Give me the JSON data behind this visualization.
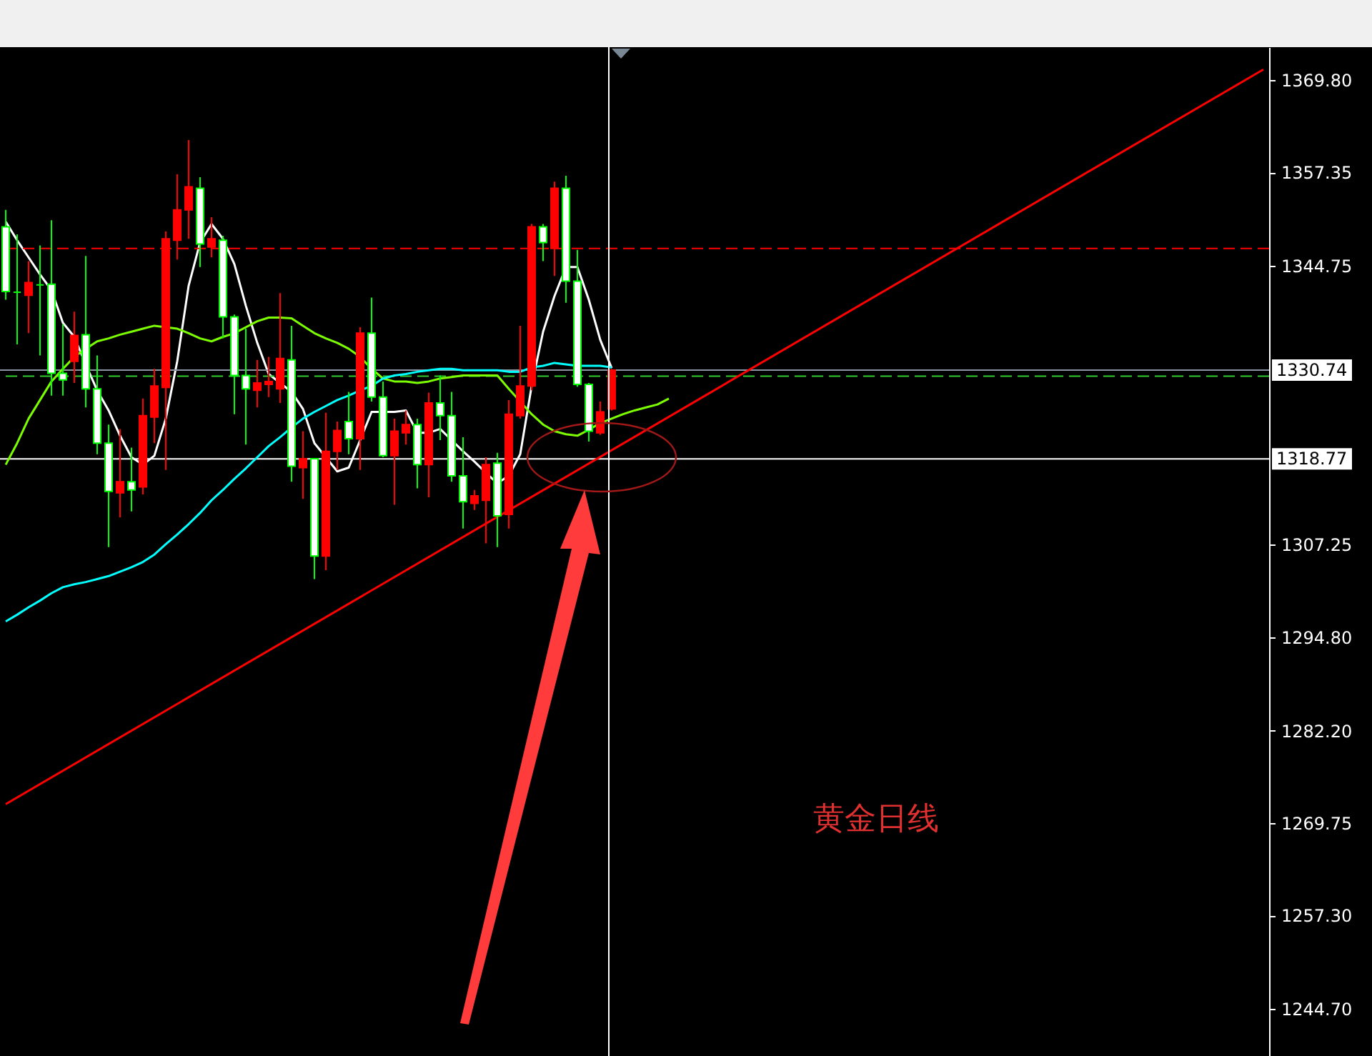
{
  "chart_data": {
    "type": "candlestick",
    "categories": [
      null,
      null,
      null,
      null,
      null,
      null,
      null,
      null,
      null,
      null,
      null,
      null,
      null,
      null,
      null,
      null,
      null,
      null,
      null,
      null,
      null,
      null,
      null,
      null,
      null,
      null,
      null,
      null,
      null,
      null,
      null,
      null,
      null,
      null,
      null,
      null,
      null,
      null,
      null,
      null,
      null,
      null,
      null,
      null,
      null,
      null,
      null,
      null,
      null,
      null,
      null,
      null,
      null,
      null,
      null,
      null,
      null,
      null,
      null,
      null,
      null,
      null,
      null,
      null,
      null,
      null,
      null,
      null,
      null,
      null,
      null,
      null,
      null,
      null,
      null,
      null,
      null,
      null,
      null,
      null,
      null,
      null,
      null,
      null,
      null,
      null,
      null,
      null,
      null,
      null,
      null,
      null,
      null,
      null,
      null,
      null,
      null,
      null,
      null,
      null,
      null,
      null,
      null,
      null,
      null,
      null,
      null,
      null,
      null,
      null,
      null
    ],
    "ylim": [
      1238.4,
      1374.2
    ],
    "yticks": [
      {
        "value": 1244.7,
        "label": "1244.70"
      },
      {
        "value": 1257.3,
        "label": "1257.30"
      },
      1269.75,
      {
        "value": 1282.2,
        "label": "1282.20"
      },
      {
        "value": 1294.8,
        "label": "1294.80"
      },
      1307.25,
      1344.75,
      1357.35,
      {
        "value": 1369.8,
        "label": "1369.80"
      }
    ],
    "tick_labels": "y",
    "series": [
      {
        "color": "#00ff00",
        "colors": [
          "#ffffff",
          "#00ff00",
          "#ff0000",
          "#00ff00",
          "#ffffff",
          "#ffffff",
          "#ff0000",
          "#ffffff",
          "#ffffff",
          "#ffffff",
          "#ff0000",
          "#ffffff",
          "#ff0000",
          "#ff0000",
          "#ff0000",
          "#ff0000",
          "#ff0000",
          "#ffffff",
          "#ff0000",
          "#ffffff",
          "#ffffff",
          "#ffffff",
          "#ff0000",
          "#ff0000",
          "#ff0000",
          "#ffffff",
          "#ff0000",
          "#ffffff",
          "#ff0000",
          "#ff0000",
          "#ffffff",
          "#ff0000",
          "#ffffff",
          "#ffffff",
          "#ff0000",
          "#ff0000",
          "#ffffff",
          "#ff0000",
          "#ffffff",
          "#ffffff",
          "#ffffff",
          "#ff0000",
          "#ff0000",
          "#ffffff",
          "#ff0000",
          "#ff0000",
          "#ff0000",
          "#ffffff",
          "#ff0000",
          "#ffffff",
          "#ffffff",
          "#ffffff",
          "#ff0000",
          "#ff0000",
          null,
          null,
          null,
          null,
          null,
          null,
          null,
          null,
          null,
          null,
          null,
          null,
          null,
          null,
          null,
          null,
          null,
          null,
          null,
          null,
          null,
          null,
          null,
          null,
          null,
          null,
          null,
          null,
          null,
          null,
          null,
          null,
          null,
          null,
          null,
          null,
          null,
          null,
          null,
          null,
          null,
          null,
          null,
          null,
          null,
          null,
          null,
          null,
          null,
          null,
          null,
          null,
          null,
          null,
          null,
          null,
          null
        ],
        "ohlc": [
          [
            1350.0,
            1352.3,
            1340.2,
            1341.3
          ],
          [
            1341.2,
            1349.0,
            1334.2,
            1341.2
          ],
          [
            1340.8,
            1345.4,
            1335.7,
            1342.5
          ],
          [
            1342.2,
            1347.5,
            1332.7,
            1342.2
          ],
          [
            1342.3,
            1350.9,
            1327.3,
            1330.3
          ],
          [
            1330.3,
            1336.9,
            1327.3,
            1329.4
          ],
          [
            1331.9,
            1338.6,
            1329.0,
            1335.4
          ],
          [
            1335.5,
            1346.1,
            1325.7,
            1328.2
          ],
          [
            1328.2,
            1332.7,
            1319.4,
            1320.9
          ],
          [
            1320.9,
            1323.4,
            1306.9,
            1314.4
          ],
          [
            1314.2,
            1322.8,
            1310.9,
            1315.7
          ],
          [
            1315.7,
            1320.3,
            1311.7,
            1314.6
          ],
          [
            1315.0,
            1326.9,
            1314.0,
            1324.6
          ],
          [
            1324.4,
            1330.9,
            1320.9,
            1328.6
          ],
          [
            1328.4,
            1349.4,
            1317.3,
            1348.4
          ],
          [
            1348.2,
            1357.1,
            1345.6,
            1352.3
          ],
          [
            1352.3,
            1361.7,
            1348.4,
            1355.4
          ],
          [
            1355.2,
            1356.7,
            1344.6,
            1347.7
          ],
          [
            1347.3,
            1351.3,
            1345.9,
            1348.4
          ],
          [
            1348.2,
            1348.8,
            1335.0,
            1337.9
          ],
          [
            1337.9,
            1338.2,
            1324.8,
            1330.0
          ],
          [
            1330.0,
            1336.3,
            1320.7,
            1328.2
          ],
          [
            1328.0,
            1332.1,
            1325.7,
            1329.0
          ],
          [
            1328.8,
            1332.5,
            1327.1,
            1329.2
          ],
          [
            1328.2,
            1341.1,
            1326.3,
            1332.3
          ],
          [
            1332.1,
            1336.7,
            1315.7,
            1317.8
          ],
          [
            1317.6,
            1322.5,
            1313.4,
            1318.8
          ],
          [
            1318.8,
            1318.8,
            1302.6,
            1305.7
          ],
          [
            1305.7,
            1325.0,
            1303.8,
            1319.8
          ],
          [
            1319.8,
            1323.8,
            1317.3,
            1322.6
          ],
          [
            1323.8,
            1327.8,
            1319.4,
            1321.5
          ],
          [
            1321.5,
            1336.5,
            1317.3,
            1335.7
          ],
          [
            1335.7,
            1340.5,
            1326.5,
            1327.1
          ],
          [
            1327.1,
            1329.2,
            1319.0,
            1319.2
          ],
          [
            1319.2,
            1324.2,
            1312.6,
            1322.5
          ],
          [
            1322.3,
            1325.3,
            1320.7,
            1323.4
          ],
          [
            1323.4,
            1324.2,
            1314.8,
            1318.0
          ],
          [
            1318.0,
            1327.7,
            1313.6,
            1326.3
          ],
          [
            1326.3,
            1330.0,
            1321.3,
            1324.6
          ],
          [
            1324.6,
            1327.8,
            1315.7,
            1316.5
          ],
          [
            1316.5,
            1321.7,
            1309.4,
            1313.0
          ],
          [
            1312.8,
            1314.6,
            1311.9,
            1313.8
          ],
          [
            1313.2,
            1319.0,
            1307.4,
            1318.0
          ],
          [
            1318.2,
            1319.6,
            1306.9,
            1311.1
          ],
          [
            1311.3,
            1326.7,
            1309.4,
            1324.8
          ],
          [
            1324.6,
            1336.7,
            1324.2,
            1328.6
          ],
          [
            1328.6,
            1350.4,
            1328.0,
            1350.0
          ],
          [
            1350.0,
            1350.4,
            1345.4,
            1347.9
          ],
          [
            1347.1,
            1356.1,
            1343.4,
            1355.2
          ],
          [
            1355.2,
            1356.9,
            1339.8,
            1342.7
          ],
          [
            1342.7,
            1346.9,
            1328.5,
            1328.8
          ],
          [
            1328.8,
            1329.0,
            1321.1,
            1322.5
          ],
          [
            1322.3,
            1326.5,
            1322.0,
            1325.1
          ],
          [
            1325.5,
            1330.9,
            1325.3,
            1330.74
          ],
          null,
          null,
          null,
          null,
          null,
          null,
          null,
          null,
          null,
          null,
          null,
          null,
          null,
          null,
          null,
          null,
          null,
          null,
          null,
          null,
          null,
          null,
          null,
          null,
          null,
          null,
          null,
          null,
          null,
          null,
          null,
          null,
          null,
          null,
          null,
          null,
          null,
          null,
          null,
          null,
          null,
          null,
          null,
          null,
          null,
          null,
          null,
          null,
          null,
          null,
          null,
          null,
          null,
          null,
          null,
          null,
          null
        ]
      },
      {
        "type": "line",
        "color": "#ffffff",
        "values": [
          1350.7,
          1348.2,
          1345.9,
          1343.6,
          1341.5,
          1337.1,
          1335.2,
          1331.5,
          1328.0,
          1325.3,
          1321.9,
          1319.0,
          1318.0,
          1319.2,
          1324.2,
          1331.9,
          1342.1,
          1347.9,
          1350.4,
          1348.4,
          1345.0,
          1339.4,
          1334.4,
          1330.2,
          1329.0,
          1327.8,
          1325.5,
          1320.9,
          1319.0,
          1317.1,
          1317.6,
          1321.3,
          1325.1,
          1325.1,
          1325.1,
          1325.3,
          1322.3,
          1322.3,
          1322.8,
          1321.3,
          1319.8,
          1318.4,
          1316.9,
          1315.5,
          1316.5,
          1319.4,
          1328.6,
          1335.9,
          1340.7,
          1344.6,
          1344.6,
          1340.2,
          1334.8,
          1331.0,
          null,
          null,
          null,
          null,
          null,
          null,
          null,
          null,
          null,
          null,
          null,
          null,
          null,
          null,
          null,
          null,
          null,
          null,
          null,
          null,
          null,
          null,
          null,
          null,
          null,
          null,
          null,
          null,
          null,
          null,
          null,
          null,
          null,
          null,
          null,
          null,
          null,
          null,
          null,
          null,
          null,
          null,
          null,
          null,
          null,
          null,
          null,
          null,
          null,
          null,
          null,
          null,
          null,
          null,
          null,
          null,
          null
        ]
      },
      {
        "type": "line",
        "color": "#7cfc00",
        "values": [
          1318.0,
          1320.9,
          1324.2,
          1326.7,
          1329.2,
          1330.9,
          1332.5,
          1333.6,
          1334.6,
          1335.0,
          1335.5,
          1335.9,
          1336.3,
          1336.7,
          1336.5,
          1336.3,
          1335.7,
          1335.0,
          1334.6,
          1335.2,
          1335.7,
          1336.5,
          1337.3,
          1337.8,
          1337.8,
          1337.7,
          1336.7,
          1335.7,
          1335.0,
          1334.4,
          1333.6,
          1332.5,
          1330.9,
          1329.6,
          1329.2,
          1329.2,
          1329.0,
          1329.2,
          1329.6,
          1329.8,
          1330.0,
          1330.0,
          1330.0,
          1330.0,
          1328.2,
          1326.5,
          1324.8,
          1323.4,
          1322.5,
          1322.1,
          1321.9,
          1322.7,
          1323.6,
          1324.2,
          1324.8,
          1325.3,
          1325.7,
          1326.1,
          1326.9,
          null,
          null,
          null,
          null,
          null,
          null,
          null,
          null,
          null,
          null,
          null,
          null,
          null,
          null,
          null,
          null,
          null,
          null,
          null,
          null,
          null,
          null,
          null,
          null,
          null,
          null,
          null,
          null,
          null,
          null,
          null,
          null,
          null,
          null,
          null,
          null,
          null,
          null,
          null,
          null,
          null,
          null,
          null,
          null,
          null,
          null,
          null,
          null,
          null,
          null,
          null,
          null
        ]
      },
      {
        "type": "line",
        "color": "#00ffff",
        "values": [
          1296.9,
          1297.8,
          1298.8,
          1299.7,
          1300.7,
          1301.5,
          1301.9,
          1302.2,
          1302.6,
          1303.0,
          1303.6,
          1304.2,
          1304.9,
          1305.9,
          1307.3,
          1308.6,
          1310.0,
          1311.5,
          1313.2,
          1314.6,
          1316.1,
          1317.5,
          1319.0,
          1320.5,
          1321.7,
          1323.0,
          1324.2,
          1325.1,
          1325.9,
          1326.7,
          1327.3,
          1328.0,
          1328.6,
          1329.6,
          1330.0,
          1330.2,
          1330.5,
          1330.7,
          1330.9,
          1330.9,
          1330.7,
          1330.7,
          1330.7,
          1330.7,
          1330.5,
          1330.5,
          1331.1,
          1331.3,
          1331.7,
          1331.5,
          1331.3,
          1331.3,
          1331.3,
          1331.1,
          null,
          null,
          null,
          null,
          null,
          null,
          null,
          null,
          null,
          null,
          null,
          null,
          null,
          null,
          null,
          null,
          null,
          null,
          null,
          null,
          null,
          null,
          null,
          null,
          null,
          null,
          null,
          null,
          null,
          null,
          null,
          null,
          null,
          null,
          null,
          null,
          null,
          null,
          null,
          null,
          null,
          null,
          null,
          null,
          null,
          null,
          null,
          null,
          null,
          null,
          null,
          null,
          null,
          null,
          null,
          null,
          null
        ]
      },
      {
        "type": "line",
        "color": "#ff0000",
        "values": [
          1272.3,
          null,
          null,
          null,
          null,
          null,
          null,
          null,
          null,
          null,
          null,
          null,
          null,
          null,
          null,
          null,
          null,
          null,
          null,
          null,
          null,
          null,
          null,
          null,
          null,
          null,
          null,
          null,
          null,
          null,
          null,
          null,
          null,
          null,
          null,
          null,
          null,
          null,
          null,
          null,
          null,
          null,
          null,
          null,
          null,
          null,
          null,
          null,
          null,
          null,
          null,
          null,
          null,
          null,
          null,
          null,
          null,
          null,
          null,
          null,
          null,
          null,
          null,
          null,
          null,
          null,
          null,
          null,
          null,
          null,
          null,
          null,
          null,
          null,
          null,
          null,
          null,
          null,
          null,
          null,
          null,
          null,
          null,
          null,
          null,
          null,
          null,
          null,
          null,
          null,
          null,
          null,
          null,
          null,
          null,
          null,
          null,
          null,
          null,
          null,
          null,
          null,
          null,
          null,
          null,
          null,
          null,
          null,
          null,
          null,
          1371.2
        ]
      }
    ],
    "ref_lines": [
      {
        "axis": "y",
        "value": 1347.1,
        "color": "#ff0000",
        "line_style": "dashed"
      },
      {
        "axis": "y",
        "value": 1329.9,
        "color": "#33cc33",
        "line_style": "dashed"
      },
      {
        "axis": "y",
        "value": 1330.74,
        "label": "1330.74",
        "color": "#8a96a3",
        "line_style": "solid"
      },
      {
        "axis": "y",
        "value": 1318.77,
        "label": "1318.77",
        "color": "#ffffff",
        "line_style": "solid"
      }
    ],
    "annotations": [
      "黄金日线"
    ]
  }
}
